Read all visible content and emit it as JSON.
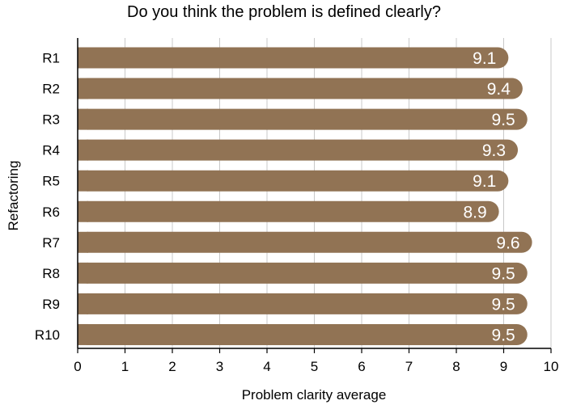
{
  "chart_data": {
    "type": "bar",
    "orientation": "horizontal",
    "title": "Do you think the problem is defined clearly?",
    "xlabel": "Problem clarity average",
    "ylabel": "Refactoring",
    "categories": [
      "R1",
      "R2",
      "R3",
      "R4",
      "R5",
      "R6",
      "R7",
      "R8",
      "R9",
      "R10"
    ],
    "values": [
      9.1,
      9.4,
      9.5,
      9.3,
      9.1,
      8.9,
      9.6,
      9.5,
      9.5,
      9.5
    ],
    "value_labels": [
      "9.1",
      "9.4",
      "9.5",
      "9.3",
      "9.1",
      "8.9",
      "9.6",
      "9.5",
      "9.5",
      "9.5"
    ],
    "xlim": [
      0,
      10
    ],
    "xticks": [
      "0",
      "1",
      "2",
      "3",
      "4",
      "5",
      "6",
      "7",
      "8",
      "9",
      "10"
    ],
    "grid": "vertical",
    "bar_color": "#917354",
    "grid_color": "#c8c8c8",
    "axis_color": "#000000"
  }
}
